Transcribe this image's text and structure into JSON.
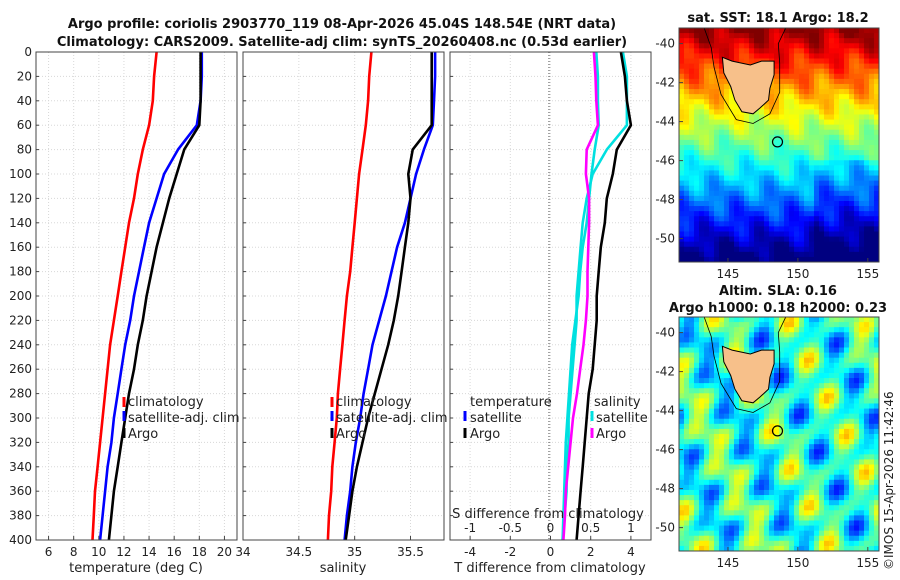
{
  "title": {
    "line1": "Argo profile: coriolis 2903770_119 08-Apr-2026 45.04S 148.54E (NRT data)",
    "line2": "Climatology: CARS2009. Satellite-adj clim: synTS_20260408.nc (0.53d earlier)"
  },
  "stamp": "©IMOS 15-Apr-2026 11:42:46",
  "colors": {
    "climatology": "#ff0000",
    "satellite": "#0000ff",
    "argo": "#000000",
    "t_diff_sat": "#00e0e0",
    "s_diff_sat": "#ff00ff",
    "land": "#f7c08a"
  },
  "chart_data": [
    {
      "id": "temperature",
      "type": "line",
      "xlabel": "temperature (deg C)",
      "ylabel": "",
      "xlim": [
        5,
        21
      ],
      "ylim": [
        0,
        400
      ],
      "xticks": [
        "6",
        "8",
        "10",
        "12",
        "14",
        "16",
        "18",
        "20"
      ],
      "xtick_values": [
        6,
        8,
        10,
        12,
        14,
        16,
        18,
        20
      ],
      "yticks": [
        "0",
        "20",
        "40",
        "60",
        "80",
        "100",
        "120",
        "140",
        "160",
        "180",
        "200",
        "220",
        "240",
        "260",
        "280",
        "300",
        "320",
        "340",
        "360",
        "380",
        "400"
      ],
      "ytick_values": [
        0,
        20,
        40,
        60,
        80,
        100,
        120,
        140,
        160,
        180,
        200,
        220,
        240,
        260,
        280,
        300,
        320,
        340,
        360,
        380,
        400
      ],
      "legend": [
        "climatology",
        "satellite-adj. clim",
        "Argo"
      ],
      "depth": [
        0,
        20,
        40,
        60,
        80,
        100,
        120,
        140,
        160,
        180,
        200,
        220,
        240,
        260,
        280,
        300,
        320,
        340,
        360,
        380,
        400
      ],
      "series": [
        {
          "name": "climatology",
          "values": [
            14.6,
            14.4,
            14.3,
            14.0,
            13.5,
            13.1,
            12.8,
            12.4,
            12.1,
            11.8,
            11.5,
            11.2,
            10.9,
            10.7,
            10.5,
            10.3,
            10.1,
            9.9,
            9.7,
            9.6,
            9.5
          ]
        },
        {
          "name": "satellite-adj. clim",
          "values": [
            18.2,
            18.2,
            18.1,
            17.8,
            16.3,
            15.2,
            14.6,
            14.0,
            13.6,
            13.2,
            12.8,
            12.5,
            12.1,
            11.8,
            11.5,
            11.2,
            11.0,
            10.7,
            10.5,
            10.3,
            10.1
          ]
        },
        {
          "name": "Argo",
          "values": [
            18.1,
            18.1,
            18.1,
            18.0,
            16.8,
            16.2,
            15.6,
            15.1,
            14.6,
            14.2,
            13.8,
            13.5,
            13.1,
            12.8,
            12.4,
            12.1,
            11.8,
            11.5,
            11.2,
            11.0,
            10.8
          ]
        }
      ]
    },
    {
      "id": "salinity",
      "type": "line",
      "xlabel": "salinity",
      "xlim": [
        34.0,
        35.8
      ],
      "ylim": [
        0,
        400
      ],
      "xticks": [
        "34",
        "34.5",
        "35",
        "35.5"
      ],
      "xtick_values": [
        34.0,
        34.5,
        35.0,
        35.5
      ],
      "legend": [
        "climatology",
        "satellite-adj. clim",
        "Argo"
      ],
      "depth": [
        0,
        20,
        40,
        60,
        80,
        100,
        120,
        140,
        160,
        180,
        200,
        220,
        240,
        260,
        280,
        300,
        320,
        340,
        360,
        380,
        400
      ],
      "series": [
        {
          "name": "climatology",
          "values": [
            35.15,
            35.13,
            35.12,
            35.1,
            35.07,
            35.04,
            35.02,
            35.0,
            34.98,
            34.96,
            34.93,
            34.91,
            34.89,
            34.87,
            34.85,
            34.84,
            34.82,
            34.8,
            34.79,
            34.77,
            34.76
          ]
        },
        {
          "name": "satellite-adj. clim",
          "values": [
            35.72,
            35.72,
            35.71,
            35.7,
            35.62,
            35.55,
            35.5,
            35.45,
            35.38,
            35.33,
            35.28,
            35.22,
            35.16,
            35.12,
            35.08,
            35.05,
            35.01,
            34.98,
            34.96,
            34.93,
            34.91
          ]
        },
        {
          "name": "Argo",
          "values": [
            35.69,
            35.69,
            35.69,
            35.69,
            35.52,
            35.48,
            35.5,
            35.48,
            35.45,
            35.42,
            35.39,
            35.35,
            35.3,
            35.24,
            35.18,
            35.12,
            35.07,
            35.02,
            34.98,
            34.95,
            34.92
          ]
        }
      ]
    },
    {
      "id": "difference",
      "type": "line",
      "xlabel": "T difference from climatology",
      "top_xlabel": "S difference from climatology",
      "xlim": [
        -5,
        5
      ],
      "ylim": [
        0,
        400
      ],
      "xticks": [
        "-4",
        "-2",
        "0",
        "2",
        "4"
      ],
      "xtick_values": [
        -4,
        -2,
        0,
        2,
        4
      ],
      "top_xticks": [
        "-1",
        "-0.5",
        "0",
        "0.5",
        "1"
      ],
      "top_xtick_values": [
        -1,
        -0.5,
        0,
        0.5,
        1
      ],
      "legend_left_title": "temperature",
      "legend_right_title": "salinity",
      "legend_items": [
        "satellite",
        "Argo"
      ],
      "depth": [
        0,
        20,
        40,
        60,
        80,
        100,
        120,
        140,
        160,
        180,
        200,
        220,
        240,
        260,
        280,
        300,
        320,
        340,
        360,
        380,
        400
      ],
      "series": [
        {
          "name": "T satellite",
          "values": [
            3.6,
            3.8,
            3.8,
            3.8,
            2.8,
            2.1,
            1.8,
            1.6,
            1.5,
            1.4,
            1.3,
            1.3,
            1.2,
            1.1,
            1.0,
            0.9,
            0.9,
            0.8,
            0.8,
            0.7,
            0.6
          ]
        },
        {
          "name": "T Argo",
          "values": [
            3.5,
            3.7,
            3.8,
            4.0,
            3.3,
            3.1,
            2.8,
            2.7,
            2.5,
            2.4,
            2.3,
            2.3,
            2.2,
            2.1,
            1.9,
            1.8,
            1.7,
            1.6,
            1.5,
            1.4,
            1.3
          ]
        },
        {
          "name": "S satellite",
          "values": [
            0.57,
            0.59,
            0.59,
            0.6,
            0.55,
            0.51,
            0.48,
            0.45,
            0.4,
            0.37,
            0.35,
            0.31,
            0.27,
            0.25,
            0.23,
            0.21,
            0.19,
            0.18,
            0.17,
            0.16,
            0.15
          ]
        },
        {
          "name": "S Argo",
          "values": [
            0.54,
            0.56,
            0.57,
            0.59,
            0.45,
            0.44,
            0.48,
            0.48,
            0.47,
            0.46,
            0.46,
            0.44,
            0.41,
            0.37,
            0.33,
            0.28,
            0.25,
            0.22,
            0.19,
            0.18,
            0.16
          ]
        }
      ]
    },
    {
      "id": "sst_map",
      "type": "heatmap",
      "title": "sat. SST: 18.1 Argo: 18.2",
      "xticks": [
        "145",
        "150",
        "155"
      ],
      "xtick_values": [
        145,
        150,
        155
      ],
      "yticks": [
        "-40",
        "-42",
        "-44",
        "-46",
        "-48",
        "-50"
      ],
      "ytick_values": [
        -40,
        -42,
        -44,
        -46,
        -48,
        -50
      ],
      "xlim": [
        141.5,
        155.8
      ],
      "ylim": [
        -51.2,
        -39.2
      ],
      "float_position": [
        148.54,
        -45.04
      ]
    },
    {
      "id": "sla_map",
      "type": "heatmap",
      "title_line1": "Altim. SLA: 0.16",
      "title_line2": "Argo h1000: 0.18 h2000: 0.23",
      "xticks": [
        "145",
        "150",
        "155"
      ],
      "xtick_values": [
        145,
        150,
        155
      ],
      "yticks": [
        "-40",
        "-42",
        "-44",
        "-46",
        "-48",
        "-50"
      ],
      "ytick_values": [
        -40,
        -42,
        -44,
        -46,
        -48,
        -50
      ],
      "xlim": [
        141.5,
        155.8
      ],
      "ylim": [
        -51.2,
        -39.2
      ],
      "float_position": [
        148.54,
        -45.04
      ]
    }
  ]
}
